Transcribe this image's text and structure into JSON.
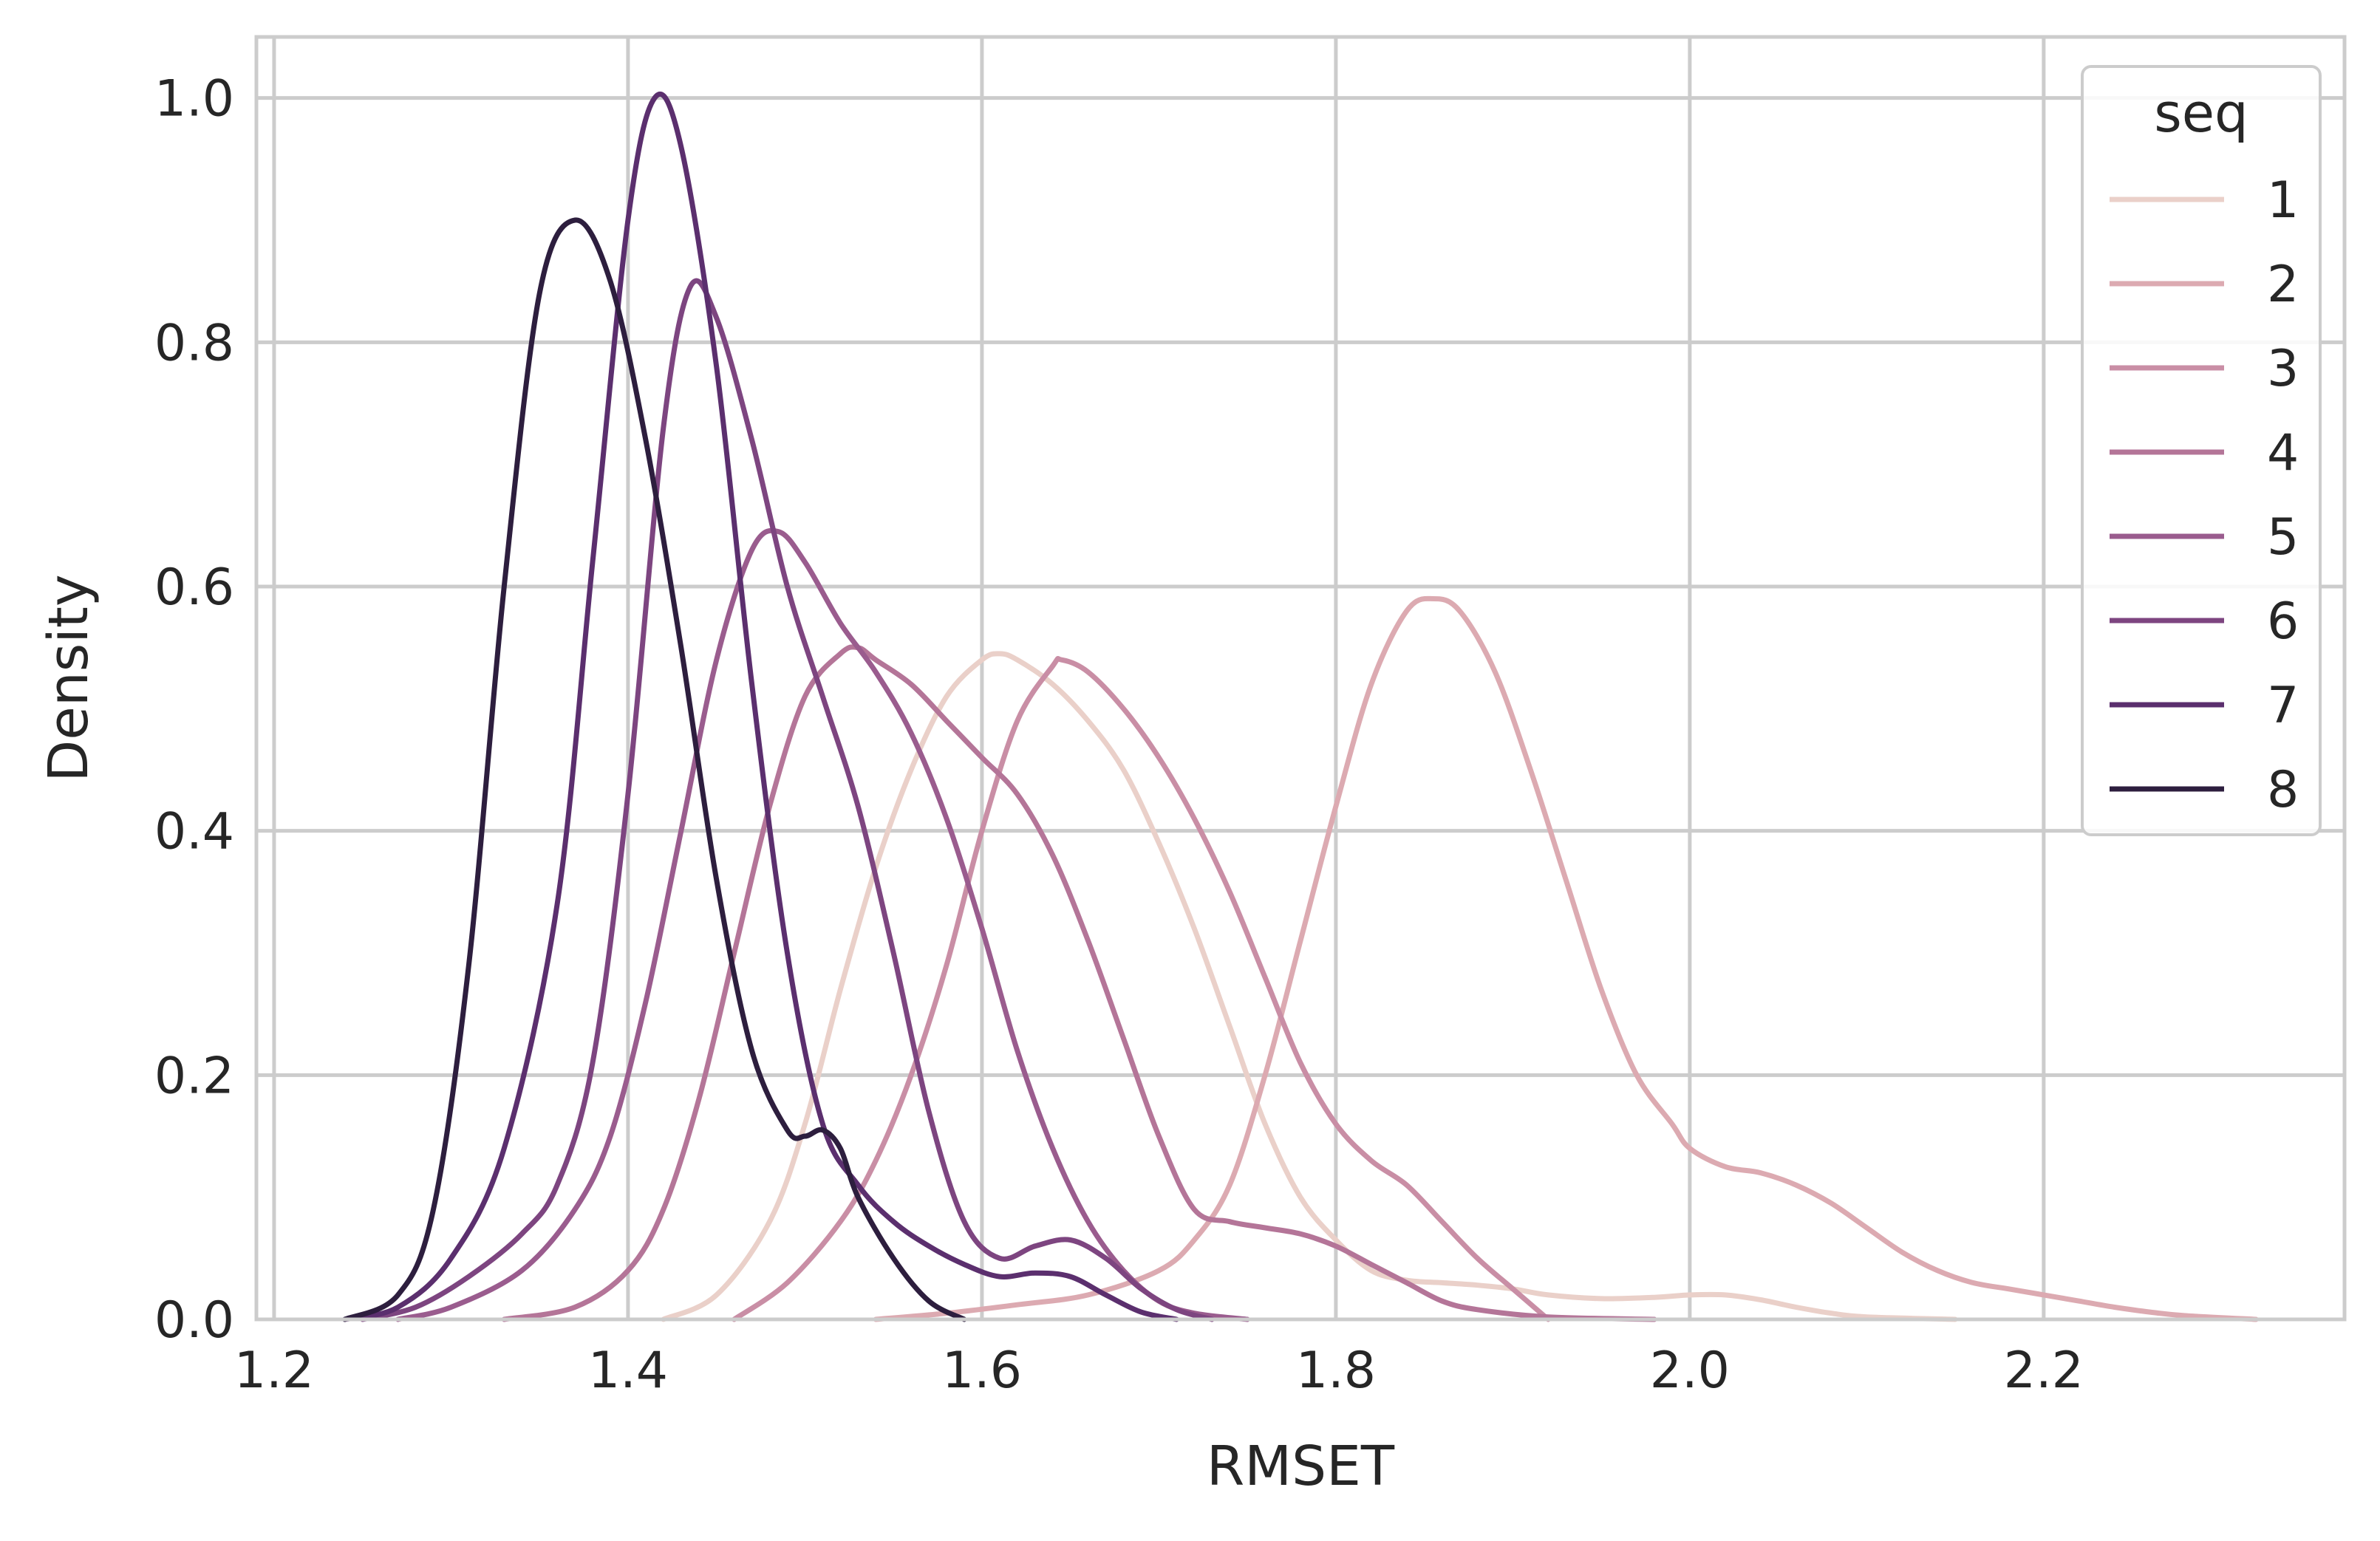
{
  "chart_data": {
    "type": "line",
    "title": "",
    "xlabel": "RMSET",
    "ylabel": "Density",
    "xlim": [
      1.19,
      2.37
    ],
    "ylim": [
      0.0,
      1.05
    ],
    "xticks": [
      1.2,
      1.4,
      1.6,
      1.8,
      2.0,
      2.2
    ],
    "xtick_labels": [
      "1.2",
      "1.4",
      "1.6",
      "1.8",
      "2.0",
      "2.2"
    ],
    "yticks": [
      0.0,
      0.2,
      0.4,
      0.6,
      0.8,
      1.0
    ],
    "ytick_labels": [
      "0.0",
      "0.2",
      "0.4",
      "0.6",
      "0.8",
      "1.0"
    ],
    "grid": true,
    "legend": {
      "title": "seq",
      "position": "top-right"
    },
    "series": [
      {
        "name": "1",
        "color": "#ead0c9",
        "x": [
          1.42,
          1.45,
          1.48,
          1.5,
          1.52,
          1.54,
          1.56,
          1.58,
          1.6,
          1.61,
          1.62,
          1.64,
          1.66,
          1.68,
          1.7,
          1.72,
          1.74,
          1.76,
          1.78,
          1.8,
          1.82,
          1.84,
          1.86,
          1.88,
          1.9,
          1.92,
          1.95,
          1.98,
          2.0,
          2.02,
          2.04,
          2.06,
          2.08,
          2.1,
          2.15
        ],
        "y": [
          0.0,
          0.02,
          0.08,
          0.16,
          0.27,
          0.37,
          0.45,
          0.51,
          0.54,
          0.545,
          0.54,
          0.52,
          0.49,
          0.45,
          0.39,
          0.32,
          0.24,
          0.16,
          0.1,
          0.065,
          0.04,
          0.032,
          0.03,
          0.028,
          0.025,
          0.02,
          0.017,
          0.018,
          0.02,
          0.02,
          0.016,
          0.01,
          0.005,
          0.002,
          0.0
        ]
      },
      {
        "name": "2",
        "color": "#dcaab1",
        "x": [
          1.54,
          1.58,
          1.62,
          1.66,
          1.7,
          1.72,
          1.74,
          1.76,
          1.78,
          1.8,
          1.82,
          1.84,
          1.855,
          1.87,
          1.89,
          1.91,
          1.93,
          1.95,
          1.97,
          1.99,
          2.0,
          2.02,
          2.04,
          2.06,
          2.08,
          2.1,
          2.12,
          2.14,
          2.16,
          2.18,
          2.2,
          2.22,
          2.24,
          2.26,
          2.28,
          2.32
        ],
        "y": [
          0.0,
          0.005,
          0.012,
          0.02,
          0.04,
          0.065,
          0.11,
          0.2,
          0.31,
          0.42,
          0.52,
          0.58,
          0.59,
          0.58,
          0.53,
          0.45,
          0.36,
          0.27,
          0.2,
          0.16,
          0.14,
          0.125,
          0.12,
          0.11,
          0.095,
          0.075,
          0.055,
          0.04,
          0.03,
          0.025,
          0.02,
          0.015,
          0.01,
          0.006,
          0.003,
          0.0
        ]
      },
      {
        "name": "3",
        "color": "#c98ea5",
        "x": [
          1.46,
          1.49,
          1.52,
          1.54,
          1.56,
          1.58,
          1.6,
          1.62,
          1.64,
          1.645,
          1.66,
          1.68,
          1.7,
          1.72,
          1.74,
          1.76,
          1.78,
          1.8,
          1.82,
          1.84,
          1.86,
          1.88,
          1.9,
          1.92
        ],
        "y": [
          0.0,
          0.03,
          0.08,
          0.13,
          0.2,
          0.29,
          0.4,
          0.49,
          0.535,
          0.54,
          0.53,
          0.5,
          0.46,
          0.41,
          0.35,
          0.28,
          0.21,
          0.16,
          0.13,
          0.11,
          0.08,
          0.05,
          0.025,
          0.0
        ]
      },
      {
        "name": "4",
        "color": "#b47598",
        "x": [
          1.33,
          1.37,
          1.4,
          1.42,
          1.44,
          1.46,
          1.48,
          1.5,
          1.52,
          1.53,
          1.54,
          1.56,
          1.58,
          1.6,
          1.62,
          1.64,
          1.66,
          1.68,
          1.7,
          1.72,
          1.74,
          1.76,
          1.78,
          1.8,
          1.82,
          1.84,
          1.86,
          1.88,
          1.92,
          1.98
        ],
        "y": [
          0.0,
          0.01,
          0.04,
          0.09,
          0.18,
          0.3,
          0.42,
          0.51,
          0.545,
          0.55,
          0.54,
          0.52,
          0.49,
          0.46,
          0.43,
          0.38,
          0.31,
          0.23,
          0.15,
          0.09,
          0.08,
          0.075,
          0.07,
          0.06,
          0.045,
          0.03,
          0.015,
          0.008,
          0.002,
          0.0
        ]
      },
      {
        "name": "5",
        "color": "#9a5c8e",
        "x": [
          1.27,
          1.3,
          1.34,
          1.37,
          1.39,
          1.41,
          1.43,
          1.45,
          1.47,
          1.485,
          1.5,
          1.52,
          1.54,
          1.56,
          1.58,
          1.6,
          1.62,
          1.64,
          1.66,
          1.68,
          1.7,
          1.72,
          1.75
        ],
        "y": [
          0.0,
          0.01,
          0.04,
          0.09,
          0.15,
          0.26,
          0.4,
          0.54,
          0.63,
          0.645,
          0.62,
          0.57,
          0.53,
          0.48,
          0.41,
          0.32,
          0.22,
          0.14,
          0.08,
          0.04,
          0.015,
          0.005,
          0.0
        ]
      },
      {
        "name": "6",
        "color": "#7d4580",
        "x": [
          1.25,
          1.28,
          1.31,
          1.34,
          1.36,
          1.38,
          1.4,
          1.42,
          1.435,
          1.45,
          1.47,
          1.49,
          1.51,
          1.53,
          1.55,
          1.57,
          1.59,
          1.61,
          1.63,
          1.65,
          1.67,
          1.69,
          1.71,
          1.73
        ],
        "y": [
          0.0,
          0.01,
          0.035,
          0.07,
          0.11,
          0.21,
          0.43,
          0.73,
          0.845,
          0.82,
          0.72,
          0.6,
          0.51,
          0.42,
          0.3,
          0.17,
          0.08,
          0.05,
          0.06,
          0.065,
          0.05,
          0.025,
          0.008,
          0.0
        ]
      },
      {
        "name": "7",
        "color": "#5b2f6e",
        "x": [
          1.24,
          1.27,
          1.3,
          1.33,
          1.36,
          1.38,
          1.4,
          1.415,
          1.43,
          1.45,
          1.47,
          1.49,
          1.51,
          1.53,
          1.55,
          1.57,
          1.59,
          1.61,
          1.63,
          1.65,
          1.67,
          1.69,
          1.71
        ],
        "y": [
          0.0,
          0.01,
          0.05,
          0.14,
          0.34,
          0.62,
          0.9,
          1.0,
          0.96,
          0.78,
          0.52,
          0.3,
          0.16,
          0.11,
          0.08,
          0.06,
          0.045,
          0.035,
          0.038,
          0.035,
          0.02,
          0.006,
          0.0
        ]
      },
      {
        "name": "8",
        "color": "#2d1e3e",
        "x": [
          1.24,
          1.27,
          1.29,
          1.31,
          1.33,
          1.35,
          1.37,
          1.39,
          1.41,
          1.43,
          1.45,
          1.47,
          1.49,
          1.5,
          1.51,
          1.52,
          1.53,
          1.55,
          1.57,
          1.59
        ],
        "y": [
          0.0,
          0.02,
          0.09,
          0.29,
          0.6,
          0.84,
          0.9,
          0.85,
          0.72,
          0.55,
          0.36,
          0.22,
          0.155,
          0.15,
          0.155,
          0.14,
          0.1,
          0.05,
          0.015,
          0.0
        ]
      }
    ]
  }
}
